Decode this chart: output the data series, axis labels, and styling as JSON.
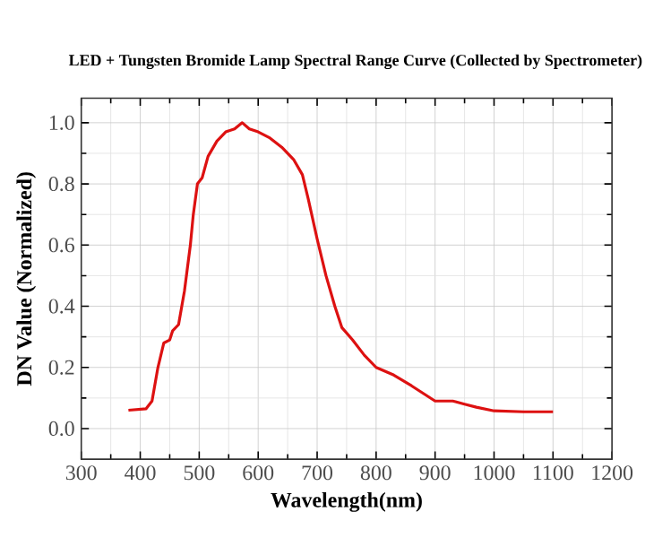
{
  "chart_data": {
    "type": "line",
    "title": "LED + Tungsten Bromide Lamp Spectral Range Curve (Collected by Spectrometer)",
    "xlabel": "Wavelength(nm)",
    "ylabel": "DN Value (Normalized)",
    "x": [
      380,
      410,
      420,
      430,
      440,
      450,
      455,
      465,
      475,
      485,
      490,
      497,
      505,
      515,
      530,
      545,
      560,
      573,
      585,
      600,
      620,
      640,
      660,
      675,
      685,
      700,
      715,
      730,
      742,
      760,
      780,
      800,
      830,
      860,
      880,
      900,
      930,
      950,
      970,
      1000,
      1050,
      1100
    ],
    "series": [
      {
        "color": "#dd1111",
        "values": [
          0.06,
          0.065,
          0.09,
          0.2,
          0.28,
          0.29,
          0.32,
          0.34,
          0.45,
          0.6,
          0.7,
          0.8,
          0.82,
          0.89,
          0.94,
          0.97,
          0.98,
          1.0,
          0.98,
          0.97,
          0.95,
          0.92,
          0.88,
          0.83,
          0.75,
          0.62,
          0.5,
          0.4,
          0.33,
          0.29,
          0.24,
          0.2,
          0.175,
          0.14,
          0.115,
          0.09,
          0.09,
          0.08,
          0.07,
          0.058,
          0.055,
          0.055
        ]
      }
    ],
    "xlim": [
      300,
      1200
    ],
    "ylim": [
      -0.1,
      1.08
    ],
    "xticks": [
      300,
      400,
      500,
      600,
      700,
      800,
      900,
      1000,
      1100,
      1200
    ],
    "yticks": [
      {
        "value": 0,
        "label": "0.0"
      },
      {
        "value": 0.2,
        "label": "0.2"
      },
      {
        "value": 0.4,
        "label": "0.4"
      },
      {
        "value": 0.6,
        "label": "0.6"
      },
      {
        "value": 0.8,
        "label": "0.8"
      },
      {
        "value": 1.0,
        "label": "1.0"
      }
    ],
    "grid": true,
    "marker": "none",
    "line_style": "solid"
  }
}
